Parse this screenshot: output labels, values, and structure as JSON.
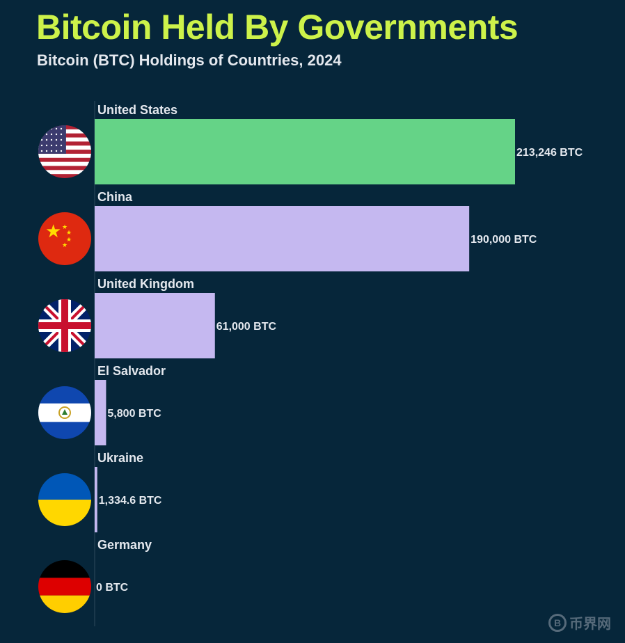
{
  "chart_data": {
    "type": "bar",
    "orientation": "horizontal",
    "title": "Bitcoin Held By Governments",
    "subtitle": "Bitcoin (BTC) Holdings of Countries, 2024",
    "unit": "BTC",
    "categories": [
      "United States",
      "China",
      "United Kingdom",
      "El Salvador",
      "Ukraine",
      "Germany"
    ],
    "values": [
      213246,
      190000,
      61000,
      5800,
      1334.6,
      0
    ],
    "value_labels": [
      "213,246 BTC",
      "190,000 BTC",
      "61,000 BTC",
      "5,800 BTC",
      "1,334.6 BTC",
      "0 BTC"
    ],
    "flags": [
      "us-flag",
      "china-flag",
      "uk-flag",
      "el-salvador-flag",
      "ukraine-flag",
      "germany-flag"
    ],
    "bar_colors": [
      "#65d387",
      "#c5b8f0",
      "#c5b8f0",
      "#c5b8f0",
      "#c5b8f0",
      "#c5b8f0"
    ],
    "grid": false,
    "legend": "none"
  },
  "colors": {
    "background": "#06263a",
    "title": "#cdf24a",
    "text": "#e4e8ee"
  },
  "watermark": {
    "text": "币界网"
  }
}
